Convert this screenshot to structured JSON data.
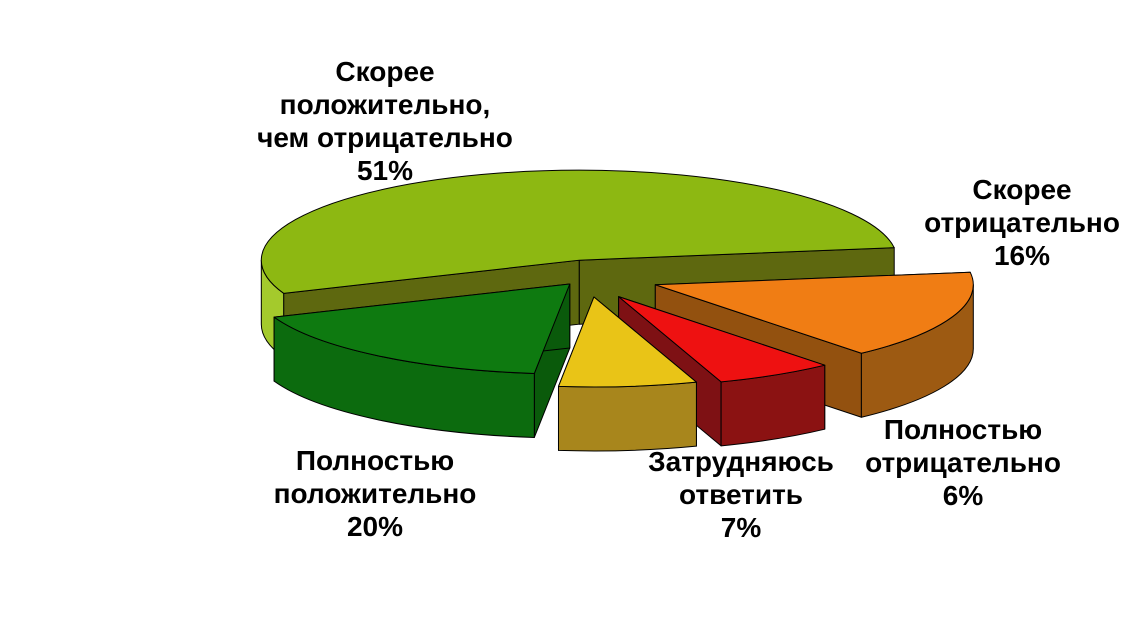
{
  "chart_data": {
    "type": "pie",
    "style": "3d-exploded",
    "title": "",
    "unit": "%",
    "legend": "none",
    "background": "#FFFFFF",
    "label_color": "#000000",
    "slices": [
      {
        "label": "Скорее положительно, чем отрицательно",
        "value": 51,
        "pct": "51%",
        "display": "Скорее\nположительно,\nчем отрицательно\n51%",
        "color_top": "#8DB812",
        "color_side": "#5E680F",
        "color_rim": "#A4CA2C"
      },
      {
        "label": "Полностью положительно",
        "value": 20,
        "pct": "20%",
        "display": "Полностью\nположительно\n20%",
        "color_top": "#0E7A10",
        "color_side": "#0A5A0B",
        "color_rim": "#0C6B0E"
      },
      {
        "label": "Затрудняюсь ответить",
        "value": 7,
        "pct": "7%",
        "display": "Затрудняюсь\nответить\n7%",
        "color_top": "#E9C417",
        "color_side": "#96791A",
        "color_rim": "#A8861C"
      },
      {
        "label": "Полностью отрицательно",
        "value": 6,
        "pct": "6%",
        "display": "Полностью\nотрицательно\n6%",
        "color_top": "#EE1111",
        "color_side": "#7E1114",
        "color_rim": "#8B1212"
      },
      {
        "label": "Скорее отрицательно",
        "value": 16,
        "pct": "16%",
        "display": "Скорее\nотрицательно\n16%",
        "color_top": "#F07D14",
        "color_side": "#93510F",
        "color_rim": "#9D5A12"
      }
    ]
  }
}
